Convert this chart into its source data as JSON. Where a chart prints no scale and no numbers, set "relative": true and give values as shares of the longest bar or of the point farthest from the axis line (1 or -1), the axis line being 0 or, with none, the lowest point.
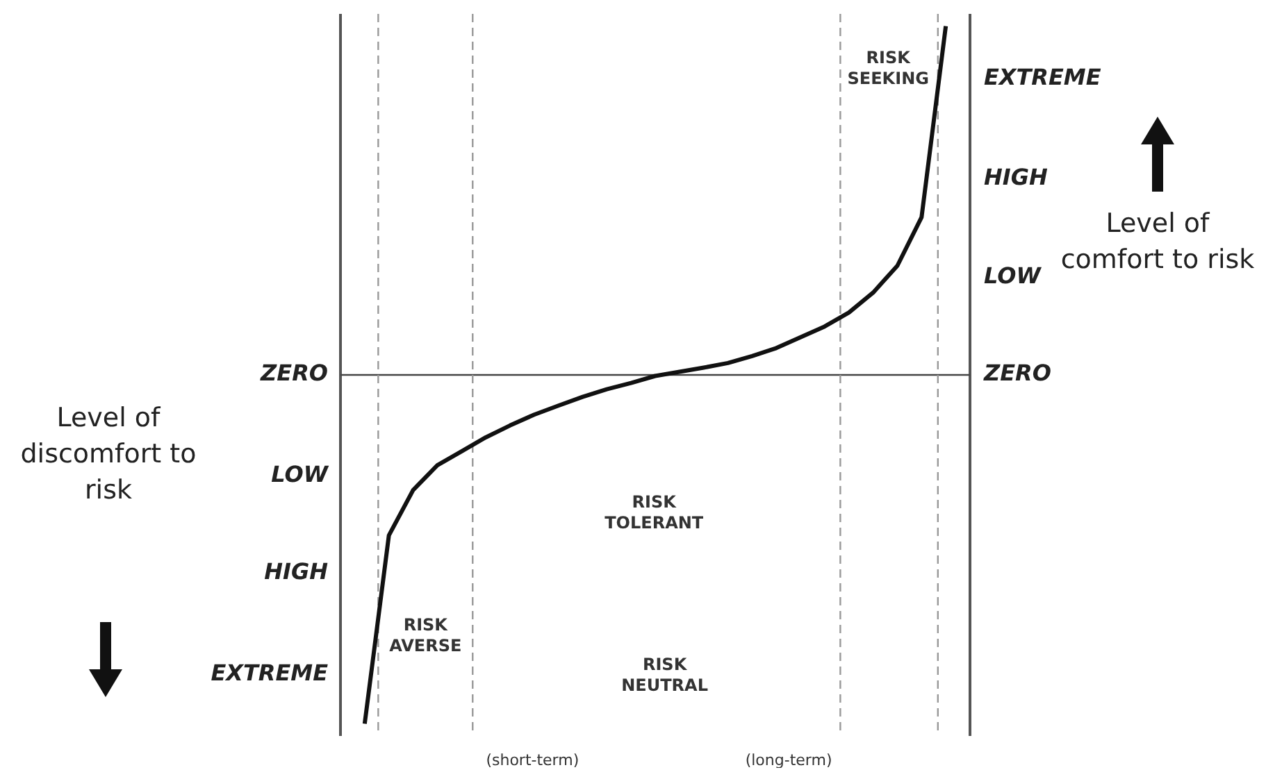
{
  "chart_data": {
    "type": "line",
    "relative": true,
    "categories": [
      null,
      null,
      null,
      null,
      null,
      null,
      null,
      null,
      null,
      null,
      null,
      null,
      null,
      null,
      null,
      null,
      null,
      null,
      null,
      null,
      null,
      null,
      null,
      null,
      null,
      null,
      null
    ],
    "series": [
      {
        "color": "#111111",
        "values": [
          null,
          -1,
          -0.46,
          -0.33,
          -0.259,
          -0.219,
          -0.179,
          -0.145,
          -0.114,
          -0.088,
          -0.063,
          -0.041,
          -0.023,
          -0.003,
          0.009,
          0.021,
          0.034,
          0.054,
          0.077,
          0.108,
          0.139,
          0.179,
          0.236,
          0.313,
          0.452,
          1,
          null
        ]
      }
    ],
    "legend": false,
    "marker": "none",
    "line_style": "solid",
    "annotations": [
      "EXTREME",
      "HIGH",
      "LOW",
      "ZERO",
      "ZERO",
      "LOW",
      "HIGH",
      "EXTREME",
      "RISK SEEKING",
      "RISK TOLERANT",
      "RISK AVERSE",
      "RISK NEUTRAL",
      "(short-term)",
      "(long-term)",
      "Level of discomfort to risk",
      "Level of comfort to risk"
    ]
  }
}
